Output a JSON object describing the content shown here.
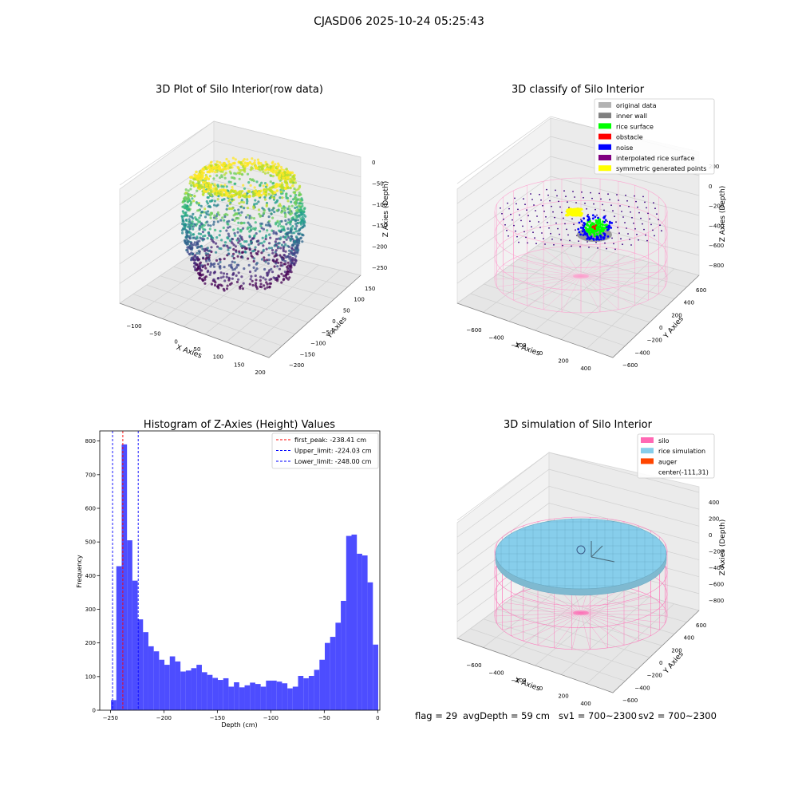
{
  "figure": {
    "suptitle": "CJASD06 2025-10-24 05:25:43",
    "footer": {
      "flag": "flag = 29",
      "avg_depth": "avgDepth = 59 cm",
      "sv1": "sv1 = 700~2300",
      "sv2": "sv2 = 700~2300"
    }
  },
  "chart_data": [
    {
      "type": "scatter",
      "projection": "3d",
      "title": "3D Plot of Silo Interior(row data)",
      "xlabel": "X Axies",
      "ylabel": "Y Axies",
      "zlabel": "Z Axies (Depth)",
      "x_ticks": [
        "−100",
        "−50",
        "0",
        "50",
        "100",
        "150",
        "200"
      ],
      "y_ticks": [
        "150",
        "100",
        "50",
        "0",
        "−50",
        "−100",
        "−150",
        "−200"
      ],
      "z_ticks": [
        "0",
        "−50",
        "−100",
        "−150",
        "−200",
        "−250"
      ],
      "xlim": [
        -130,
        210
      ],
      "ylim": [
        -210,
        170
      ],
      "zlim": [
        -270,
        5
      ],
      "colormap": "viridis",
      "grid": true
    },
    {
      "type": "scatter",
      "projection": "3d",
      "title": "3D classify of Silo Interior",
      "xlabel": "X Axies",
      "ylabel": "Y Axies",
      "zlabel": "Z Axies (Depth)",
      "x_ticks": [
        "−600",
        "−400",
        "−200",
        "0",
        "200",
        "400"
      ],
      "y_ticks": [
        "600",
        "400",
        "200",
        "0",
        "−200",
        "−400",
        "−600"
      ],
      "z_ticks": [
        "200",
        "0",
        "−200",
        "−400",
        "−600",
        "−800"
      ],
      "legend_position": "top-right",
      "legend": [
        {
          "label": "original data",
          "color": "#b3b3b3"
        },
        {
          "label": "inner wall",
          "color": "#808080"
        },
        {
          "label": "rice surface",
          "color": "#00ff00"
        },
        {
          "label": "obstacle",
          "color": "#ff0000"
        },
        {
          "label": "noise",
          "color": "#0000ff"
        },
        {
          "label": "interpolated rice surface",
          "color": "#800080"
        },
        {
          "label": "symmetric generated points",
          "color": "#ffff00"
        }
      ],
      "grid": true
    },
    {
      "type": "histogram",
      "title": "Histogram of Z-Axies (Height) Values",
      "xlabel": "Depth (cm)",
      "ylabel": "Frequency",
      "xlim": [
        -260,
        2
      ],
      "ylim": [
        0,
        830
      ],
      "x_ticks": [
        -250,
        -200,
        -150,
        -100,
        -50,
        0
      ],
      "x_tick_labels": [
        "−250",
        "−200",
        "−150",
        "−100",
        "−50",
        "0"
      ],
      "y_ticks": [
        0,
        100,
        200,
        300,
        400,
        500,
        600,
        700,
        800
      ],
      "bar_color": "#4d4dff",
      "bin_start": -249.5,
      "bin_width": 5,
      "counts": [
        30,
        428,
        790,
        505,
        385,
        270,
        232,
        190,
        175,
        150,
        135,
        160,
        145,
        115,
        118,
        125,
        135,
        113,
        105,
        96,
        90,
        95,
        70,
        83,
        68,
        74,
        82,
        78,
        70,
        88,
        88,
        85,
        80,
        65,
        70,
        102,
        95,
        102,
        120,
        150,
        200,
        218,
        260,
        325,
        518,
        522,
        465,
        460,
        380,
        195
      ],
      "vlines": [
        {
          "label": "first_peak: -238.41 cm",
          "x": -238.41,
          "color": "#ff0000"
        },
        {
          "label": "Upper_limit: -224.03 cm",
          "x": -224.03,
          "color": "#0000ff"
        },
        {
          "label": "Lower_limit: -248.00 cm",
          "x": -248.0,
          "color": "#0000ff"
        }
      ],
      "legend_position": "top-right",
      "grid": false
    },
    {
      "type": "surface",
      "projection": "3d",
      "title": "3D simulation of Silo Interior",
      "xlabel": "X Axies",
      "ylabel": "Y Axies",
      "zlabel": "Z Axies (Depth)",
      "x_ticks": [
        "−600",
        "−400",
        "−200",
        "0",
        "200",
        "400"
      ],
      "y_ticks": [
        "600",
        "400",
        "200",
        "0",
        "−200",
        "−400",
        "−600"
      ],
      "z_ticks": [
        "400",
        "200",
        "0",
        "−200",
        "−400",
        "−600",
        "−800"
      ],
      "legend_position": "top-right",
      "legend": [
        {
          "label": "silo",
          "color": "#ff69b4"
        },
        {
          "label": "rice simulation",
          "color": "#87ceeb"
        },
        {
          "label": "auger",
          "color": "#ff4500"
        },
        {
          "label": "center(-111,31)",
          "color": ""
        }
      ],
      "grid": true
    }
  ]
}
